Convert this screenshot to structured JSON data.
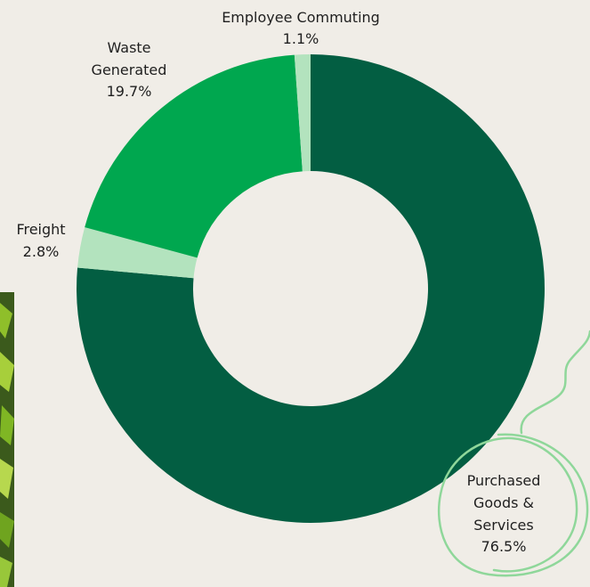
{
  "chart_data": {
    "type": "pie",
    "donut": true,
    "categories": [
      "Purchased Goods & Services",
      "Freight",
      "Waste Generated",
      "Employee Commuting"
    ],
    "values": [
      76.5,
      2.8,
      19.7,
      1.1
    ],
    "value_labels": [
      "76.5%",
      "2.8%",
      "19.7%",
      "1.1%"
    ],
    "colors": [
      "#035e42",
      "#b3e3be",
      "#00a74f",
      "#b3e3be"
    ],
    "title": "",
    "legend": "none"
  },
  "labels": {
    "commuting": {
      "line1": "Employee Commuting",
      "value": "1.1%"
    },
    "waste": {
      "line1": "Waste",
      "line2": "Generated",
      "value": "19.7%"
    },
    "freight": {
      "line1": "Freight",
      "value": "2.8%"
    },
    "purchased": {
      "line1": "Purchased",
      "line2": "Goods &",
      "line3": "Services",
      "value": "76.5%"
    }
  },
  "background_color": "#f0ede7",
  "accent_scribble_color": "#8fd79a"
}
